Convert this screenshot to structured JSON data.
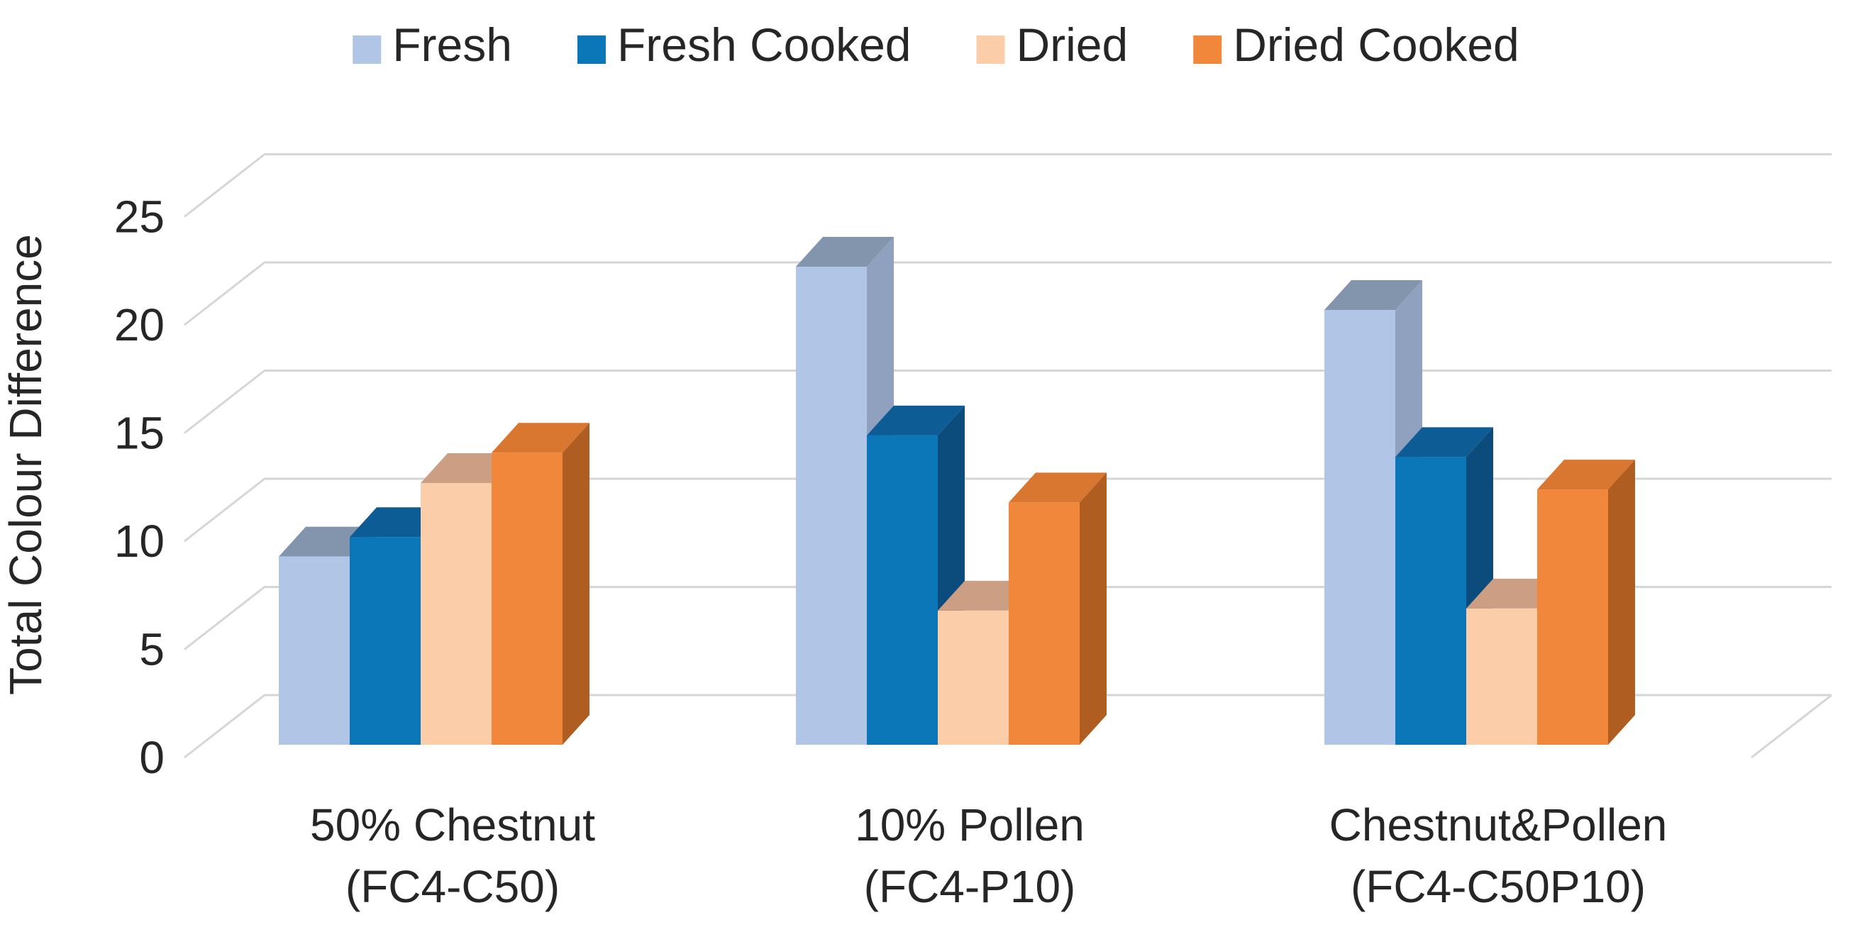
{
  "page": {
    "background": "#FFFFFF"
  },
  "chart_data": {
    "type": "bar",
    "variant": "3d-clustered-column",
    "title": "",
    "xlabel": "",
    "ylabel": "Total Colour Difference",
    "ylim": [
      0,
      25
    ],
    "yticks": [
      0,
      5,
      10,
      15,
      20,
      25
    ],
    "grid": true,
    "legend_position": "top",
    "background": "#FFFFFF",
    "grid_color": "#D6D6D6",
    "text_color": "#262626",
    "categories": [
      {
        "line1": "50% Chestnut",
        "line2": "(FC4-C50)"
      },
      {
        "line1": "10% Pollen",
        "line2": "(FC4-P10)"
      },
      {
        "line1": "Chestnut&Pollen",
        "line2": "(FC4-C50P10)"
      }
    ],
    "series": [
      {
        "name": "Fresh",
        "front_color": "#B1C6E7",
        "side_color": "#8FA1BE",
        "top_color": "#8295AD",
        "values": [
          8.7,
          22.1,
          20.1
        ]
      },
      {
        "name": "Fresh Cooked",
        "front_color": "#0B76B8",
        "side_color": "#0B4C7C",
        "top_color": "#0D5C95",
        "values": [
          9.6,
          14.3,
          13.3
        ]
      },
      {
        "name": "Dried",
        "front_color": "#FBCDA9",
        "side_color": "#C79474",
        "top_color": "#CC9E83",
        "values": [
          12.1,
          6.2,
          6.3
        ]
      },
      {
        "name": "Dried Cooked",
        "front_color": "#F0873B",
        "side_color": "#AF5D20",
        "top_color": "#D97630",
        "values": [
          13.5,
          11.2,
          11.8
        ]
      }
    ]
  }
}
